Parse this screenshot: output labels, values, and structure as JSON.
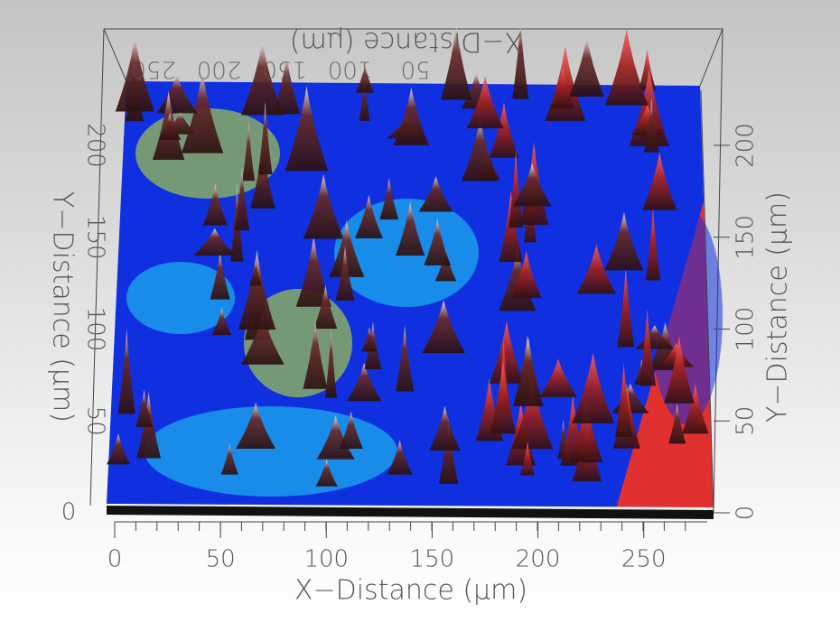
{
  "chart_data": {
    "type": "surface",
    "xlabel": "X−Distance (μm)",
    "ylabel": "Y−Distance (μm)",
    "xlim": [
      0,
      280
    ],
    "xticks": [
      0,
      50,
      100,
      150,
      200,
      250
    ],
    "ylim": [
      0,
      230
    ],
    "yticks": [
      0,
      50,
      100,
      150,
      200
    ],
    "colors": [
      "#1030e0",
      "#20d8f0",
      "#30e820",
      "#c8f020",
      "#e03030"
    ]
  }
}
